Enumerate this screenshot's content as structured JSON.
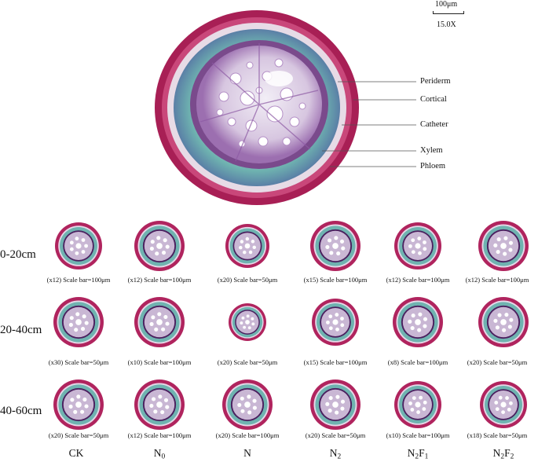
{
  "main_image": {
    "scale_bar_label": "100μm",
    "magnification": "15.0X",
    "labels": [
      "Periderm",
      "Cortical",
      "Catheter",
      "Xylem",
      "Phloem"
    ]
  },
  "grid": {
    "rows": [
      "0-20cm",
      "20-40cm",
      "40-60cm"
    ],
    "columns": [
      {
        "main": "CK",
        "sub": "",
        "tail": "",
        "sub2": ""
      },
      {
        "main": "N",
        "sub": "0",
        "tail": "",
        "sub2": ""
      },
      {
        "main": "N",
        "sub": "",
        "tail": "",
        "sub2": ""
      },
      {
        "main": "N",
        "sub": "2",
        "tail": "",
        "sub2": ""
      },
      {
        "main": "N",
        "sub": "2",
        "tail": "F",
        "sub2": "1"
      },
      {
        "main": "N",
        "sub": "2",
        "tail": "F",
        "sub2": "2"
      }
    ],
    "captions": [
      [
        "(x12) Scale bar=100μm",
        "(x12) Scale bar=100μm",
        "(x20) Scale bar=50μm",
        "(x15) Scale bar=100μm",
        "(x12) Scale bar=100μm",
        "(x12) Scale bar=100μm"
      ],
      [
        "(x30) Scale bar=50μm",
        "(x10) Scale bar=100μm",
        "(x20) Scale bar=50μm",
        "(x15) Scale bar=100μm",
        "(x8) Scale bar=100μm",
        "(x20) Scale bar=50μm"
      ],
      [
        "(x20) Scale bar=50μm",
        "(x12) Scale bar=100μm",
        "(x20) Scale bar=100μm",
        "(x20) Scale bar=50μm",
        "(x10) Scale bar=100μm",
        "(x18) Scale bar=50μm"
      ]
    ]
  },
  "colors": {
    "periderm": "#b0245e",
    "cortex": "#6fb3b0",
    "inner": "#c9b7d4",
    "vessel": "#ffffff",
    "dark": "#4a1f5e"
  }
}
